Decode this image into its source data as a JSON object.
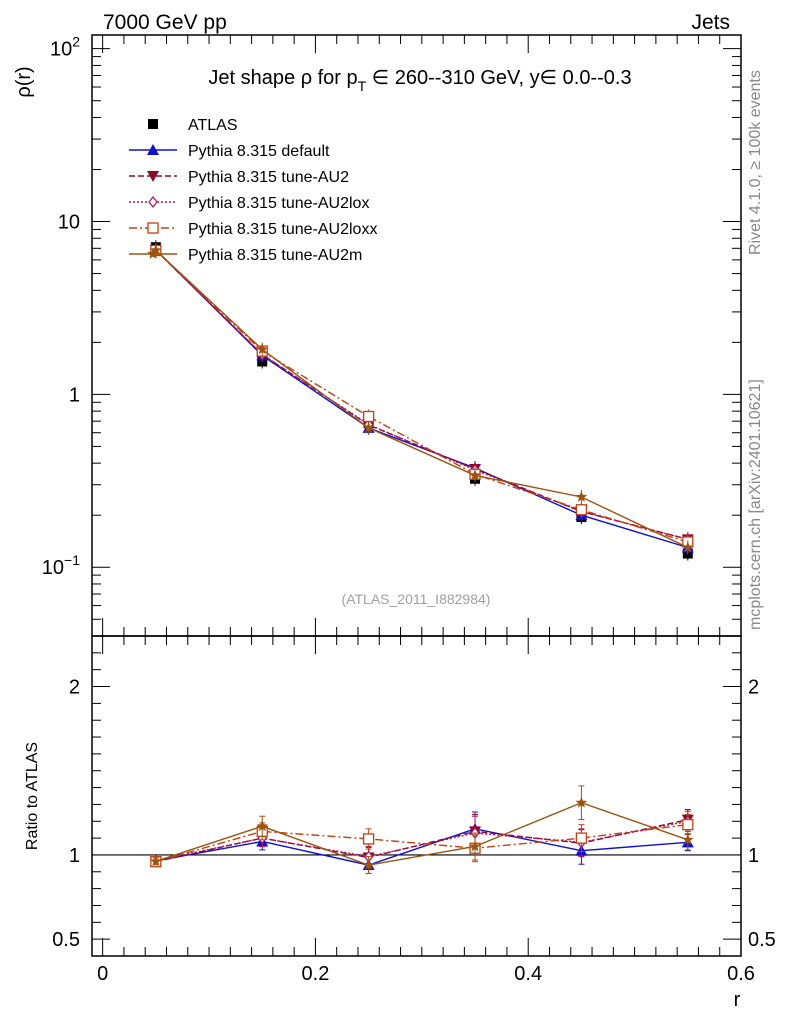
{
  "header": {
    "left": "7000 GeV pp",
    "right": "Jets"
  },
  "side_labels": {
    "top": "Rivet 4.1.0, ≥ 100k events",
    "bottom": "mcplots.cern.ch [arXiv:2401.10621]"
  },
  "colors": {
    "atlas": "#000000",
    "default": "#1010cc",
    "au2": "#8b0a2a",
    "au2lox": "#b01060",
    "au2loxx": "#c04010",
    "au2m": "#9c5410"
  },
  "chart_data": [
    {
      "type": "line",
      "title": "Jet shape ρ for p_T ∈ 260--310 GeV, y∈ 0.0--0.3",
      "title_parts": {
        "prefix": "Jet shape ρ for p",
        "subscript": "T",
        "suffix": " ∈ 260--310 GeV, y∈ 0.0--0.3"
      },
      "analysis_label": "(ATLAS_2011_I882984)",
      "ylabel": "ρ(r)",
      "xlabel": "r",
      "yscale": "log",
      "ylim": [
        0.04,
        120
      ],
      "xlim": [
        -0.01,
        0.6
      ],
      "ytick_labels": [
        {
          "value": 0.1,
          "base": "10",
          "exp": "−1"
        },
        {
          "value": 1,
          "base": "1",
          "exp": ""
        },
        {
          "value": 10,
          "base": "10",
          "exp": ""
        },
        {
          "value": 100,
          "base": "10",
          "exp": "2"
        }
      ],
      "legend_position": "top-left",
      "x": [
        0.05,
        0.15,
        0.25,
        0.35,
        0.45,
        0.55
      ],
      "series": [
        {
          "key": "atlas",
          "name": "ATLAS",
          "marker": "square",
          "line": "none",
          "values": [
            7.1,
            1.55,
            0.68,
            0.325,
            0.195,
            0.12
          ]
        },
        {
          "key": "default",
          "name": "Pythia 8.315 default",
          "marker": "triangle",
          "line": "solid",
          "values": [
            6.85,
            1.68,
            0.64,
            0.375,
            0.2,
            0.13
          ]
        },
        {
          "key": "au2",
          "name": "Pythia 8.315 tune-AU2",
          "marker": "triangle-down",
          "line": "dashed",
          "values": [
            6.82,
            1.7,
            0.665,
            0.37,
            0.21,
            0.145
          ]
        },
        {
          "key": "au2lox",
          "name": "Pythia 8.315 tune-AU2lox",
          "marker": "diamond-open",
          "line": "dotted",
          "values": [
            6.85,
            1.7,
            0.67,
            0.365,
            0.21,
            0.145
          ]
        },
        {
          "key": "au2loxx",
          "name": "Pythia 8.315 tune-AU2loxx",
          "marker": "square-open",
          "line": "dashdot",
          "values": [
            6.8,
            1.78,
            0.745,
            0.345,
            0.215,
            0.14
          ]
        },
        {
          "key": "au2m",
          "name": "Pythia 8.315 tune-AU2m",
          "marker": "star",
          "line": "solid",
          "values": [
            6.82,
            1.82,
            0.64,
            0.34,
            0.255,
            0.13
          ]
        }
      ]
    },
    {
      "type": "line",
      "ylabel": "Ratio to ATLAS",
      "xlabel": "r",
      "ylim": [
        0.4,
        2.3
      ],
      "xlim": [
        -0.01,
        0.6
      ],
      "yticks": [
        0.5,
        1,
        2
      ],
      "ytick_labels": [
        "0.5",
        "1",
        "2"
      ],
      "xticks": [
        0,
        0.2,
        0.4,
        0.6
      ],
      "xtick_labels": [
        "0",
        "0.2",
        "0.4",
        "0.6"
      ],
      "reference_line": 1,
      "x": [
        0.05,
        0.15,
        0.25,
        0.35,
        0.45,
        0.55
      ],
      "series": [
        {
          "key": "default",
          "name": "Pythia 8.315 default",
          "values": [
            0.965,
            1.08,
            0.94,
            1.155,
            1.025,
            1.075
          ],
          "errors": [
            0.02,
            0.05,
            0.05,
            0.1,
            0.08,
            0.05
          ]
        },
        {
          "key": "au2",
          "name": "Pythia 8.315 tune-AU2",
          "values": [
            0.96,
            1.1,
            0.985,
            1.14,
            1.07,
            1.21
          ],
          "errors": [
            0.02,
            0.05,
            0.06,
            0.1,
            0.08,
            0.06
          ]
        },
        {
          "key": "au2lox",
          "name": "Pythia 8.315 tune-AU2lox",
          "values": [
            0.965,
            1.1,
            0.99,
            1.13,
            1.075,
            1.2
          ],
          "errors": [
            0.02,
            0.05,
            0.06,
            0.1,
            0.08,
            0.06
          ]
        },
        {
          "key": "au2loxx",
          "name": "Pythia 8.315 tune-AU2loxx",
          "values": [
            0.96,
            1.14,
            1.095,
            1.04,
            1.1,
            1.18
          ],
          "errors": [
            0.02,
            0.05,
            0.06,
            0.08,
            0.08,
            0.06
          ]
        },
        {
          "key": "au2m",
          "name": "Pythia 8.315 tune-AU2m",
          "values": [
            0.962,
            1.17,
            0.94,
            1.05,
            1.31,
            1.09
          ],
          "errors": [
            0.02,
            0.06,
            0.05,
            0.08,
            0.1,
            0.06
          ]
        }
      ]
    }
  ]
}
